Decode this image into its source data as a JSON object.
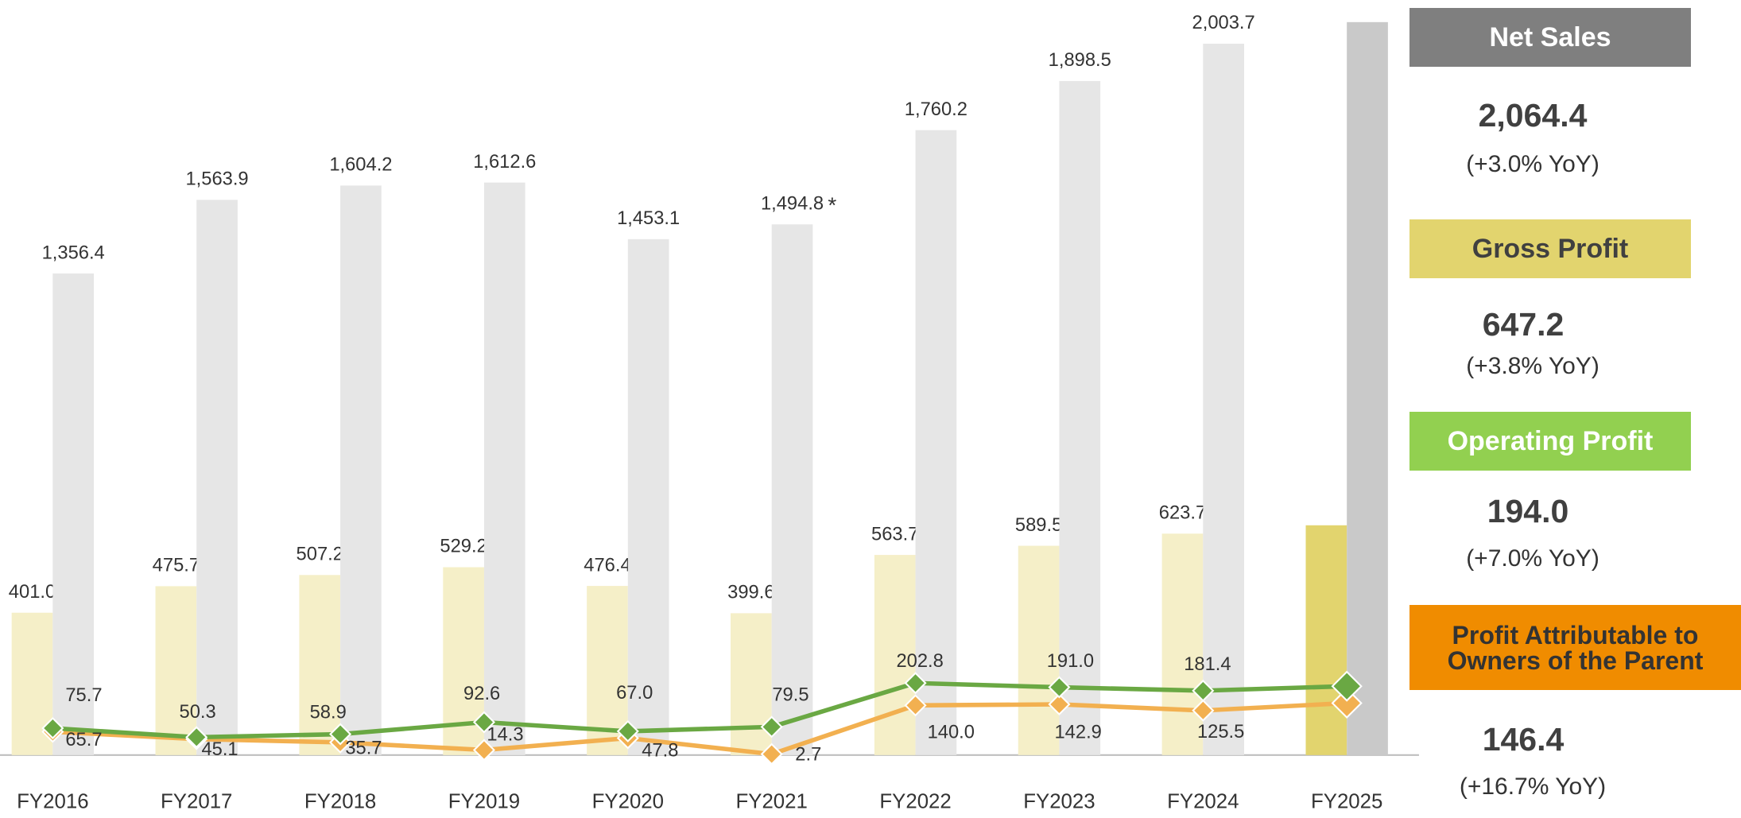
{
  "chart_data": {
    "type": "bar_line",
    "categories": [
      "FY2016",
      "FY2017",
      "FY2018",
      "FY2019",
      "FY2020",
      "FY2021",
      "FY2022",
      "FY2023",
      "FY2024",
      "FY2025"
    ],
    "annotation": "*",
    "ylim": [
      0,
      2100
    ],
    "series": [
      {
        "name": "Net Sales",
        "type": "bar",
        "color": "#7f7f7f",
        "colors": [
          "#e6e6e6",
          "#e6e6e6",
          "#e6e6e6",
          "#e6e6e6",
          "#e6e6e6",
          "#e6e6e6",
          "#e6e6e6",
          "#e6e6e6",
          "#e6e6e6",
          "#c9c9c9"
        ],
        "values": [
          1356.4,
          1563.9,
          1604.2,
          1612.6,
          1453.1,
          1494.8,
          1760.2,
          1898.5,
          2003.7,
          2064.4
        ],
        "value_labels": [
          "1,356.4",
          "1,563.9",
          "1,604.2",
          "1,612.6",
          "1,453.1",
          "1,494.8",
          "1,760.2",
          "1,898.5",
          "2,003.7",
          "2,064.4"
        ],
        "yoy": "(+3.0% YoY)"
      },
      {
        "name": "Gross Profit",
        "type": "bar",
        "color": "#e2d46e",
        "colors": [
          "#f5efc8",
          "#f5efc8",
          "#f5efc8",
          "#f5efc8",
          "#f5efc8",
          "#f5efc8",
          "#f5efc8",
          "#f5efc8",
          "#f5efc8",
          "#e2d46e"
        ],
        "values": [
          401.0,
          475.7,
          507.2,
          529.2,
          476.4,
          399.6,
          563.7,
          589.5,
          623.7,
          647.2
        ],
        "value_labels": [
          "401.0",
          "475.7",
          "507.2",
          "529.2",
          "476.4",
          "399.6",
          "563.7",
          "589.5",
          "623.7",
          "647.2"
        ],
        "yoy": "(+3.8% YoY)"
      },
      {
        "name": "Operating Profit",
        "type": "line",
        "color": "#92d050",
        "line_color": "#6aa843",
        "values": [
          75.7,
          50.3,
          58.9,
          92.6,
          67.0,
          79.5,
          202.8,
          191.0,
          181.4,
          194.0
        ],
        "value_labels": [
          "75.7",
          "50.3",
          "58.9",
          "92.6",
          "67.0",
          "79.5",
          "202.8",
          "191.0",
          "181.4",
          "194.0"
        ],
        "yoy": "(+7.0% YoY)"
      },
      {
        "name": "Profit Attributable to Owners of the Parent",
        "type": "line",
        "color": "#f08c00",
        "line_color": "#f2b050",
        "values": [
          65.7,
          45.1,
          35.7,
          14.3,
          47.8,
          2.7,
          140.0,
          142.9,
          125.5,
          146.4
        ],
        "value_labels": [
          "65.7",
          "45.1",
          "35.7",
          "14.3",
          "47.8",
          "2.7",
          "140.0",
          "142.9",
          "125.5",
          "146.4"
        ],
        "yoy": "(+16.7% YoY)"
      }
    ]
  }
}
